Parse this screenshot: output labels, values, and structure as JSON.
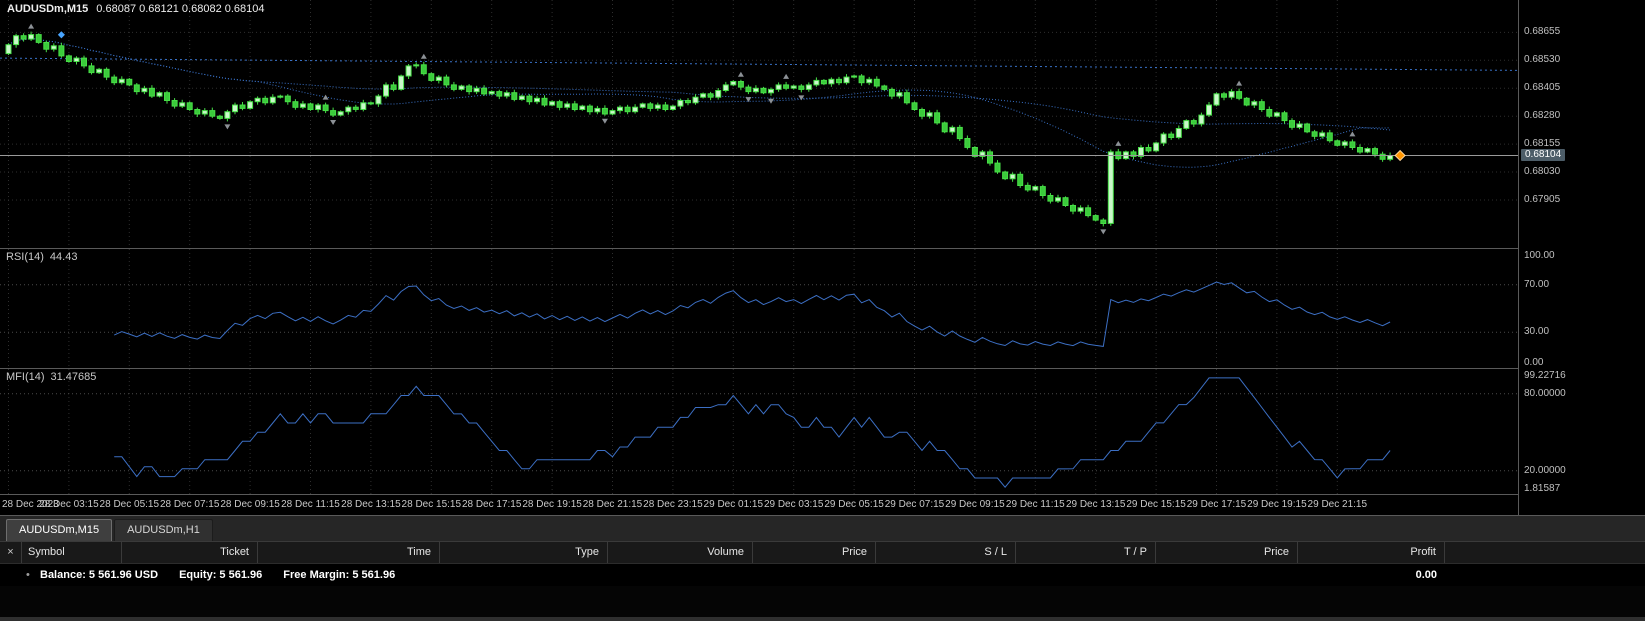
{
  "chart": {
    "symbol_period": "AUDUSDm,M15",
    "ohlc_line": "0.68087 0.68121 0.68082 0.68104"
  },
  "chart_data": {
    "type": "candlestick",
    "symbol": "AUDUSDm",
    "timeframe": "M15",
    "title": "AUDUSDm,M15",
    "ohlc_display": {
      "open": "0.68087",
      "high": "0.68121",
      "low": "0.68082",
      "close": "0.68104"
    },
    "price_axis": {
      "tick_labels": [
        "0.68655",
        "0.68530",
        "0.68405",
        "0.68280",
        "0.68155",
        "0.68030",
        "0.67905"
      ],
      "current_price": 0.68104,
      "current_display": "0.68104",
      "ylim": [
        0.6769,
        0.688
      ]
    },
    "x_time_labels": [
      "28 Dec 2023",
      "28 Dec 03:15",
      "28 Dec 05:15",
      "28 Dec 07:15",
      "28 Dec 09:15",
      "28 Dec 11:15",
      "28 Dec 13:15",
      "28 Dec 15:15",
      "28 Dec 17:15",
      "28 Dec 19:15",
      "28 Dec 21:15",
      "28 Dec 23:15",
      "29 Dec 01:15",
      "29 Dec 03:15",
      "29 Dec 05:15",
      "29 Dec 07:15",
      "29 Dec 09:15",
      "29 Dec 11:15",
      "29 Dec 13:15",
      "29 Dec 15:15",
      "29 Dec 17:15",
      "29 Dec 19:15",
      "29 Dec 21:15"
    ],
    "open_first_e5": 68560,
    "closes_e5": [
      68600,
      68640,
      68625,
      68645,
      68610,
      68580,
      68595,
      68550,
      68525,
      68540,
      68505,
      68475,
      68490,
      68455,
      68430,
      68445,
      68420,
      68390,
      68405,
      68370,
      68385,
      68350,
      68325,
      68340,
      68310,
      68290,
      68305,
      68280,
      68270,
      68300,
      68330,
      68315,
      68345,
      68360,
      68340,
      68365,
      68370,
      68345,
      68320,
      68335,
      68310,
      68330,
      68305,
      68285,
      68300,
      68320,
      68310,
      68340,
      68335,
      68370,
      68420,
      68400,
      68460,
      68505,
      68510,
      68470,
      68440,
      68455,
      68420,
      68400,
      68415,
      68390,
      68405,
      68380,
      68390,
      68370,
      68385,
      68355,
      68370,
      68345,
      68360,
      68330,
      68345,
      68320,
      68335,
      68310,
      68325,
      68300,
      68315,
      68290,
      68305,
      68320,
      68300,
      68320,
      68335,
      68315,
      68330,
      68310,
      68325,
      68350,
      68340,
      68365,
      68380,
      68365,
      68395,
      68420,
      68435,
      68410,
      68390,
      68405,
      68385,
      68400,
      68420,
      68405,
      68415,
      68400,
      68420,
      68440,
      68425,
      68445,
      68430,
      68455,
      68460,
      68430,
      68445,
      68415,
      68400,
      68370,
      68385,
      68340,
      68310,
      68280,
      68295,
      68250,
      68210,
      68230,
      68180,
      68140,
      68100,
      68120,
      68070,
      68030,
      68000,
      68020,
      67970,
      67950,
      67965,
      67925,
      67900,
      67915,
      67880,
      67855,
      67870,
      67835,
      67815,
      67800,
      68120,
      68090,
      68120,
      68100,
      68140,
      68125,
      68160,
      68200,
      68185,
      68225,
      68260,
      68245,
      68285,
      68330,
      68380,
      68365,
      68390,
      68360,
      68330,
      68345,
      68310,
      68280,
      68295,
      68260,
      68230,
      68245,
      68210,
      68190,
      68205,
      68170,
      68150,
      68165,
      68140,
      68120,
      68135,
      68110,
      68087,
      68104
    ],
    "overlays": {
      "moving_average_periods": [
        34,
        89
      ],
      "trendline_e5": {
        "p1": 68540,
        "p2": 68485
      },
      "fractal_arrows": true
    },
    "indicators": [
      {
        "name": "RSI",
        "period": 14,
        "label": "RSI(14)",
        "value": 44.43,
        "value_display": "44.43",
        "levels": [
          30,
          70
        ],
        "scale_labels": [
          "100.00",
          "70.00",
          "30.00",
          "0.00"
        ],
        "range": [
          0,
          100
        ],
        "line_color": "#3C6FC4"
      },
      {
        "name": "MFI",
        "period": 14,
        "label": "MFI(14)",
        "value": 31.47685,
        "value_display": "31.47685",
        "levels": [
          20,
          80
        ],
        "scale_labels": [
          "99.22716",
          "80.00000",
          "20.00000",
          "1.81587"
        ],
        "range": [
          1.81587,
          99.22716
        ],
        "line_color": "#3C6FC4"
      }
    ]
  },
  "tabs": [
    {
      "label": "AUDUSDm,M15",
      "active": true
    },
    {
      "label": "AUDUSDm,H1",
      "active": false
    }
  ],
  "toolbox": {
    "close_label": "×",
    "bullet_icon": "•",
    "columns": [
      "Symbol",
      "Ticket",
      "Time",
      "Type",
      "Volume",
      "Price",
      "S / L",
      "T / P",
      "Price",
      "Profit"
    ],
    "balance": {
      "balance": "Balance: 5 561.96 USD",
      "equity": "Equity: 5 561.96",
      "free_margin": "Free Margin: 5 561.96",
      "profit": "0.00"
    }
  },
  "colors": {
    "background": "#000000",
    "grid": "#2E2E2E",
    "level": "#4A4A4A",
    "candle_up": "#C9F8C9",
    "candle_down": "#3BCB3B",
    "candle_stroke": "#47DF47",
    "ma": "#3A72C8",
    "fractal": "#8C9196",
    "current_line": "#9A9A9A",
    "price_tag_bg": "#4D5D68",
    "marker_orange": "#FF9500",
    "marker_blue": "#49A5FF",
    "scale_text": "#C0C0C0"
  }
}
